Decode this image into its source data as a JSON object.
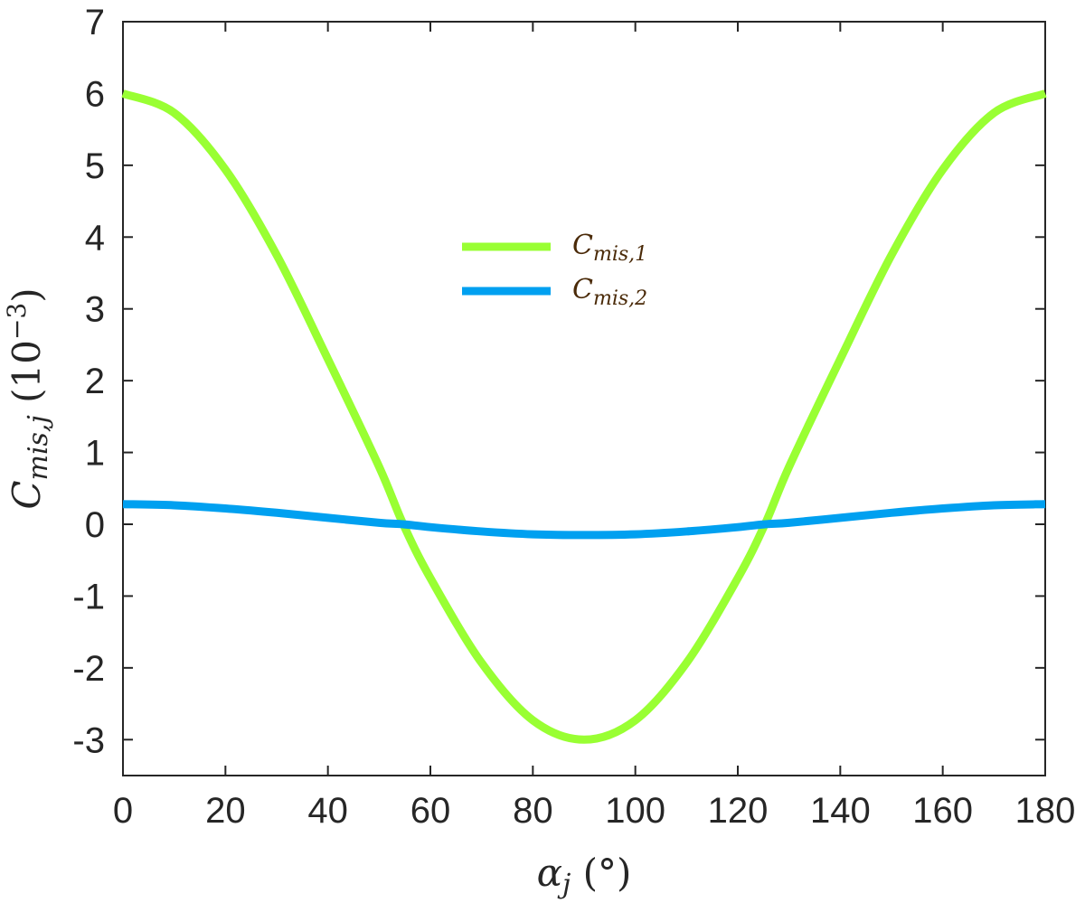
{
  "chart_data": {
    "type": "line",
    "xlabel": "α_j (°)",
    "ylabel": "C_mis,j (10^-3)",
    "xlim": [
      0,
      180
    ],
    "ylim": [
      -3.5,
      7
    ],
    "x_ticks": [
      0,
      20,
      40,
      60,
      80,
      100,
      120,
      140,
      160,
      180
    ],
    "y_ticks": [
      -3,
      -2,
      -1,
      0,
      1,
      2,
      3,
      4,
      5,
      6,
      7
    ],
    "grid": false,
    "legend_position": "center",
    "x": [
      0,
      10,
      20,
      30,
      40,
      50,
      54.7,
      60,
      70,
      80,
      90,
      100,
      110,
      120,
      125.3,
      130,
      140,
      150,
      160,
      170,
      180
    ],
    "series": [
      {
        "name": "C_mis,1",
        "color": "#99ff33",
        "values": [
          6.0,
          5.73,
          4.94,
          3.75,
          2.3,
          0.8,
          0.0,
          -0.75,
          -1.93,
          -2.73,
          -3.0,
          -2.73,
          -1.93,
          -0.75,
          0.0,
          0.8,
          2.3,
          3.75,
          4.94,
          5.73,
          6.0
        ]
      },
      {
        "name": "C_mis,2",
        "color": "#00a0f0",
        "values": [
          0.28,
          0.265,
          0.22,
          0.16,
          0.09,
          0.02,
          0.0,
          -0.04,
          -0.1,
          -0.14,
          -0.15,
          -0.14,
          -0.1,
          -0.04,
          0.0,
          0.02,
          0.09,
          0.16,
          0.22,
          0.265,
          0.28
        ]
      }
    ]
  }
}
